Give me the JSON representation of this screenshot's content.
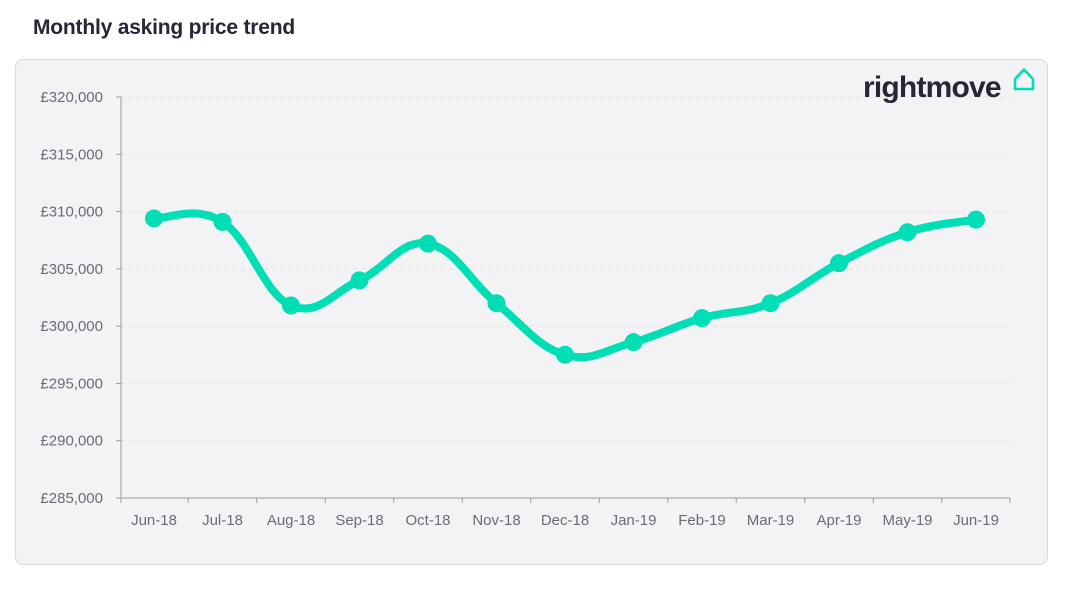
{
  "page": {
    "title": "Monthly asking price trend"
  },
  "brand": {
    "name": "rightmove",
    "icon": "house-icon",
    "accent": "#00deb6"
  },
  "chart_data": {
    "type": "line",
    "title": "Monthly asking price trend",
    "xlabel": "",
    "ylabel": "",
    "categories": [
      "Jun-18",
      "Jul-18",
      "Aug-18",
      "Sep-18",
      "Oct-18",
      "Nov-18",
      "Dec-18",
      "Jan-19",
      "Feb-19",
      "Mar-19",
      "Apr-19",
      "May-19",
      "Jun-19"
    ],
    "values": [
      309400,
      309100,
      301800,
      304000,
      307200,
      302000,
      297500,
      298600,
      300700,
      302000,
      305500,
      308200,
      309300
    ],
    "ylim": [
      285000,
      320000
    ],
    "yticks": [
      285000,
      290000,
      295000,
      300000,
      305000,
      310000,
      315000,
      320000
    ],
    "ytick_labels": [
      "£285,000",
      "£290,000",
      "£295,000",
      "£300,000",
      "£305,000",
      "£310,000",
      "£315,000",
      "£320,000"
    ],
    "grid": true,
    "line_color": "#00deb6",
    "legend": "none"
  }
}
